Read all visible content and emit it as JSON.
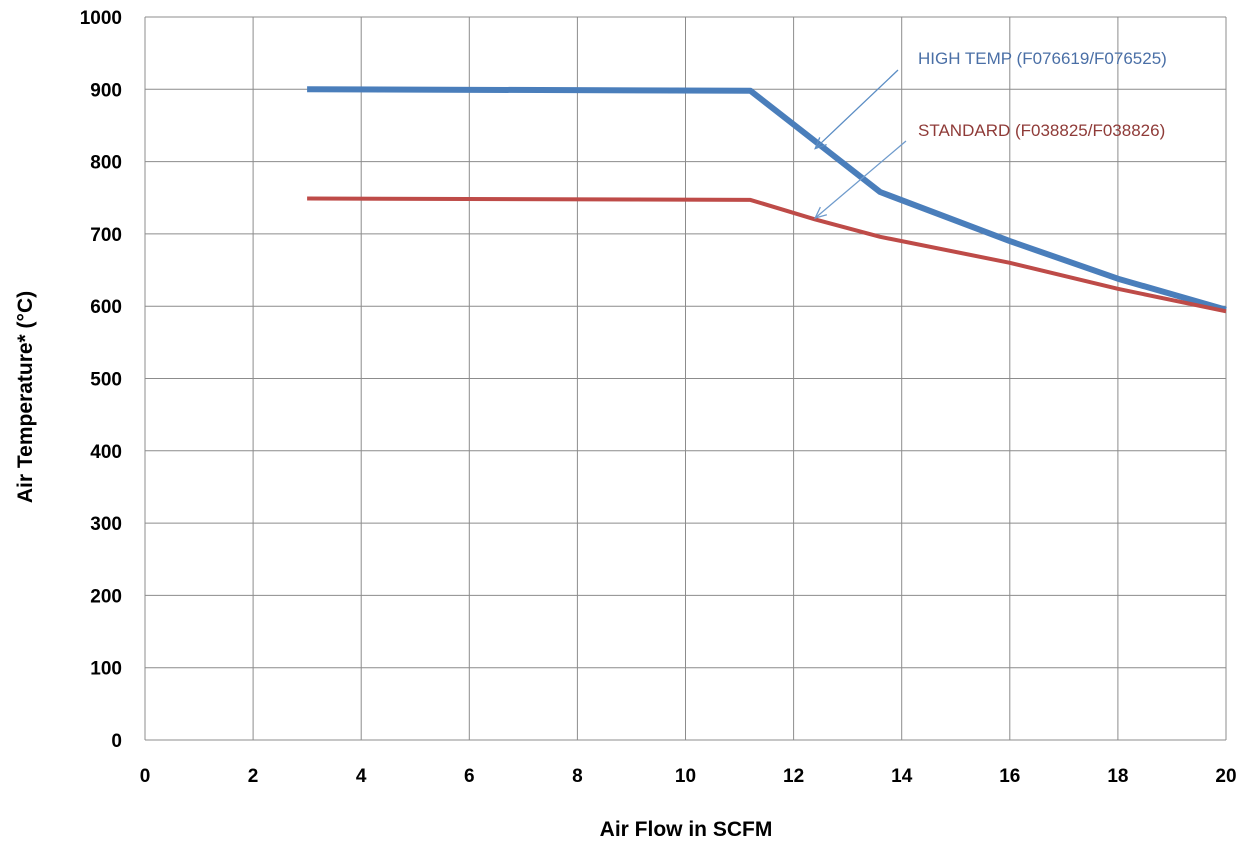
{
  "chart_data": {
    "type": "line",
    "xlabel": "Air Flow in SCFM",
    "ylabel": "Air Temperature* (°C)",
    "xlim": [
      0,
      20
    ],
    "ylim": [
      0,
      1000
    ],
    "xticks": [
      0,
      2,
      4,
      6,
      8,
      10,
      12,
      14,
      16,
      18,
      20
    ],
    "yticks": [
      0,
      100,
      200,
      300,
      400,
      500,
      600,
      700,
      800,
      900,
      1000
    ],
    "grid": true,
    "series": [
      {
        "name": "HIGH TEMP (F076619/F076525)",
        "color": "#4a7ebb",
        "points": [
          [
            3,
            900
          ],
          [
            11.2,
            898
          ],
          [
            13.6,
            758
          ],
          [
            16,
            690
          ],
          [
            18,
            638
          ],
          [
            20,
            595
          ]
        ]
      },
      {
        "name": "STANDARD (F038825/F038826)",
        "color": "#be4b48",
        "points": [
          [
            3,
            749
          ],
          [
            11.2,
            747
          ],
          [
            12.4,
            720
          ],
          [
            13.6,
            696
          ],
          [
            16,
            660
          ],
          [
            18,
            624
          ],
          [
            20,
            593
          ]
        ]
      }
    ],
    "annotations": [
      {
        "text": "HIGH TEMP (F076619/F076525)",
        "arrow_to": [
          12.4,
          818
        ],
        "color": "#4a6fa6"
      },
      {
        "text": "STANDARD (F038825/F038826)",
        "arrow_to": [
          12.4,
          722
        ],
        "color": "#8f3b38"
      }
    ]
  }
}
